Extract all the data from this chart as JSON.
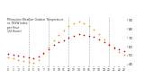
{
  "title": "Milwaukee Weather Outdoor Temperature vs THSW Index per Hour (24 Hours)",
  "background_color": "#ffffff",
  "grid_color": "#aaaaaa",
  "hours": [
    0,
    1,
    2,
    3,
    4,
    5,
    6,
    7,
    8,
    9,
    10,
    11,
    12,
    13,
    14,
    15,
    16,
    17,
    18,
    19,
    20,
    21,
    22,
    23
  ],
  "temp": [
    52,
    51,
    50,
    49,
    48,
    47,
    49,
    53,
    57,
    62,
    65,
    67,
    70,
    72,
    74,
    73,
    72,
    71,
    68,
    65,
    62,
    59,
    57,
    55
  ],
  "thsw": [
    48,
    47,
    45,
    44,
    43,
    42,
    45,
    52,
    59,
    67,
    73,
    78,
    83,
    86,
    88,
    86,
    83,
    79,
    74,
    68,
    63,
    58,
    54,
    51
  ],
  "temp_color": "#cc0000",
  "thsw_color": "#ff8800",
  "ylim_min": 38,
  "ylim_max": 93,
  "ytick_values": [
    90,
    80,
    70,
    60,
    50,
    40
  ],
  "ytick_labels": [
    "90",
    "80",
    "70",
    "60",
    "50",
    "40"
  ],
  "vline_positions": [
    4,
    8,
    12,
    16,
    20
  ],
  "marker_size": 1.2
}
